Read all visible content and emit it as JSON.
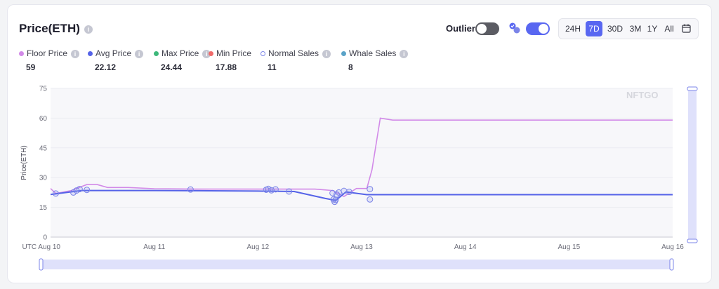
{
  "header": {
    "title": "Price(ETH)",
    "outliers_label": "Outliers"
  },
  "ranges": [
    "24H",
    "7D",
    "30D",
    "3M",
    "1Y",
    "All"
  ],
  "legend": [
    {
      "label": "Floor Price",
      "value": "59",
      "color": "#d28ae8"
    },
    {
      "label": "Avg Price",
      "value": "22.12",
      "color": "#5563e8"
    },
    {
      "label": "Max Price",
      "value": "24.44",
      "color": "#3db87a"
    },
    {
      "label": "Min Price",
      "value": "17.88",
      "color": "#f06a6a"
    },
    {
      "label": "Normal Sales",
      "value": "11",
      "color": "#7b84e8"
    },
    {
      "label": "Whale Sales",
      "value": "8",
      "color": "#5aa3c8"
    }
  ],
  "watermark": "NFTGO",
  "chart_data": {
    "type": "line",
    "ylabel": "Price(ETH)",
    "ylim": [
      0,
      75
    ],
    "yticks": [
      0,
      15,
      30,
      45,
      60,
      75
    ],
    "xlim": [
      0,
      6.0
    ],
    "xticks": [
      {
        "x": 0,
        "label": "UTC Aug 10"
      },
      {
        "x": 1,
        "label": "Aug 11"
      },
      {
        "x": 2,
        "label": "Aug 12"
      },
      {
        "x": 3,
        "label": "Aug 13"
      },
      {
        "x": 4,
        "label": "Aug 14"
      },
      {
        "x": 5,
        "label": "Aug 15"
      },
      {
        "x": 6,
        "label": "Aug 16"
      }
    ],
    "series": [
      {
        "name": "Floor Price",
        "color": "#d28ae8",
        "x": [
          0,
          0.05,
          0.2,
          0.35,
          0.45,
          0.55,
          0.75,
          1.0,
          1.4,
          2.1,
          2.55,
          2.72,
          2.83,
          2.95,
          3.05,
          3.1,
          3.18,
          3.3,
          4.0,
          6.0
        ],
        "y": [
          24.5,
          22,
          23.5,
          26.5,
          26.5,
          25,
          25,
          24.4,
          24.2,
          24.2,
          24.2,
          23.5,
          20.5,
          24.5,
          24.5,
          34,
          60,
          59,
          59,
          59
        ]
      },
      {
        "name": "Avg Price",
        "color": "#5563e8",
        "x": [
          0,
          0.3,
          1.0,
          2.0,
          2.35,
          2.65,
          2.75,
          2.85,
          3.05,
          6.0
        ],
        "y": [
          21.5,
          23.5,
          23.5,
          23.2,
          23.0,
          19.5,
          18.5,
          22.8,
          21.4,
          21.4
        ]
      },
      {
        "name": "Sales",
        "color": "#7b84e8",
        "x": [
          0.05,
          0.22,
          0.25,
          0.28,
          0.35,
          1.35,
          2.08,
          2.1,
          2.13,
          2.17,
          2.3,
          2.72,
          2.73,
          2.74,
          2.75,
          2.76,
          2.78,
          2.83,
          2.88,
          3.08,
          3.08
        ],
        "y": [
          22,
          22.5,
          23.5,
          24.2,
          23.8,
          24,
          23.9,
          24.3,
          23.6,
          24.1,
          23,
          22.2,
          19,
          17.8,
          18.8,
          21.5,
          22.5,
          23.3,
          22.8,
          24.2,
          19
        ]
      }
    ]
  }
}
